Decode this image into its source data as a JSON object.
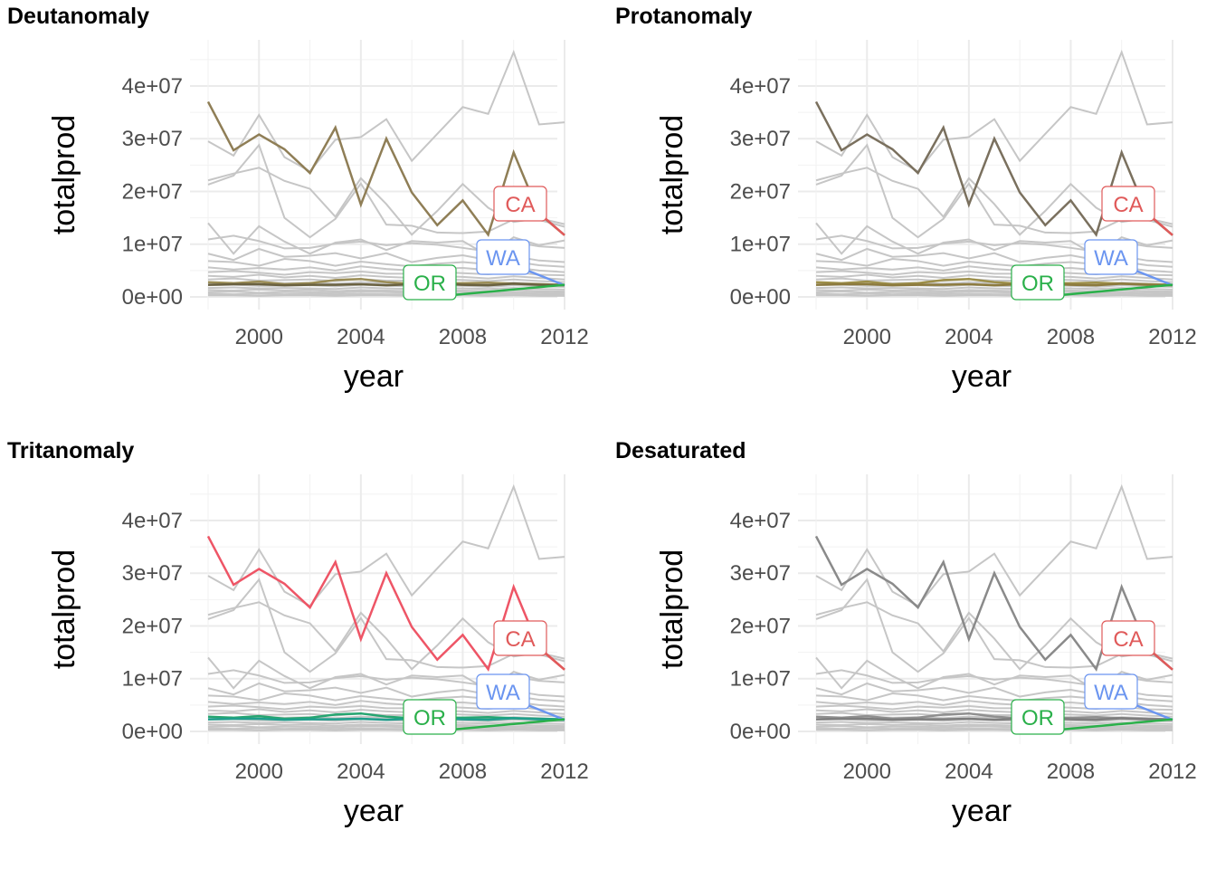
{
  "chart_data": [
    {
      "type": "line",
      "title": "Deutanomaly",
      "xlabel": "year",
      "ylabel": "totalprod",
      "xlim": [
        1998,
        2012
      ],
      "ylim": [
        0,
        46000000
      ],
      "x_ticks": [
        2000,
        2004,
        2008,
        2012
      ],
      "y_ticks": [
        0,
        10000000,
        20000000,
        30000000,
        40000000
      ],
      "y_tick_labels": [
        "0e+00",
        "1e+07",
        "2e+07",
        "3e+07",
        "4e+07"
      ],
      "grid": true,
      "x": [
        1998,
        1999,
        2000,
        2001,
        2002,
        2003,
        2004,
        2005,
        2006,
        2007,
        2008,
        2009,
        2010,
        2011,
        2012
      ],
      "series": [
        {
          "name": "CA",
          "color": "#8f7e56",
          "label_color": "#e05a5a",
          "values": [
            37000000,
            27800000,
            30800000,
            28000000,
            23500000,
            32100000,
            17500000,
            30000000,
            19800000,
            13600000,
            18300000,
            11800000,
            27400000,
            15800000,
            11700000
          ]
        },
        {
          "name": "WA",
          "color": "#6a6140",
          "label_color": "#6b95f0",
          "values": [
            2300000,
            2400000,
            2400000,
            2200000,
            2300000,
            2300000,
            2400000,
            2200000,
            2400000,
            2500000,
            2300000,
            2200000,
            2500000,
            2300000,
            2200000
          ]
        },
        {
          "name": "OR",
          "color": "#9a8c55",
          "label_color": "#2ab04a",
          "values": [
            2800000,
            2600000,
            2900000,
            2400000,
            2600000,
            3200000,
            3400000,
            2800000,
            2500000,
            2600000,
            2600000,
            2700000,
            2500000,
            2400000,
            2300000
          ]
        }
      ],
      "labels": [
        "CA",
        "WA",
        "OR"
      ]
    },
    {
      "type": "line",
      "title": "Protanomaly",
      "xlabel": "year",
      "ylabel": "totalprod",
      "xlim": [
        1998,
        2012
      ],
      "ylim": [
        0,
        46000000
      ],
      "x_ticks": [
        2000,
        2004,
        2008,
        2012
      ],
      "y_ticks": [
        0,
        10000000,
        20000000,
        30000000,
        40000000
      ],
      "y_tick_labels": [
        "0e+00",
        "1e+07",
        "2e+07",
        "3e+07",
        "4e+07"
      ],
      "grid": true,
      "x": [
        1998,
        1999,
        2000,
        2001,
        2002,
        2003,
        2004,
        2005,
        2006,
        2007,
        2008,
        2009,
        2010,
        2011,
        2012
      ],
      "series": [
        {
          "name": "CA",
          "color": "#7a705e",
          "label_color": "#e05a5a",
          "values": [
            37000000,
            27800000,
            30800000,
            28000000,
            23500000,
            32100000,
            17500000,
            30000000,
            19800000,
            13600000,
            18300000,
            11800000,
            27400000,
            15800000,
            11700000
          ]
        },
        {
          "name": "WA",
          "color": "#8c7a3e",
          "label_color": "#6b95f0",
          "values": [
            2300000,
            2400000,
            2400000,
            2200000,
            2300000,
            2300000,
            2400000,
            2200000,
            2400000,
            2500000,
            2300000,
            2200000,
            2500000,
            2300000,
            2200000
          ]
        },
        {
          "name": "OR",
          "color": "#9c8e48",
          "label_color": "#2ab04a",
          "values": [
            2800000,
            2600000,
            2900000,
            2400000,
            2600000,
            3200000,
            3400000,
            2800000,
            2500000,
            2600000,
            2600000,
            2700000,
            2500000,
            2400000,
            2300000
          ]
        }
      ],
      "labels": [
        "CA",
        "WA",
        "OR"
      ]
    },
    {
      "type": "line",
      "title": "Tritanomaly",
      "xlabel": "year",
      "ylabel": "totalprod",
      "xlim": [
        1998,
        2012
      ],
      "ylim": [
        0,
        46000000
      ],
      "x_ticks": [
        2000,
        2004,
        2008,
        2012
      ],
      "y_ticks": [
        0,
        10000000,
        20000000,
        30000000,
        40000000
      ],
      "y_tick_labels": [
        "0e+00",
        "1e+07",
        "2e+07",
        "3e+07",
        "4e+07"
      ],
      "grid": true,
      "x": [
        1998,
        1999,
        2000,
        2001,
        2002,
        2003,
        2004,
        2005,
        2006,
        2007,
        2008,
        2009,
        2010,
        2011,
        2012
      ],
      "series": [
        {
          "name": "CA",
          "color": "#ee5566",
          "label_color": "#e05a5a",
          "values": [
            37000000,
            27800000,
            30800000,
            28000000,
            23500000,
            32100000,
            17500000,
            30000000,
            19800000,
            13600000,
            18300000,
            11800000,
            27400000,
            15800000,
            11700000
          ]
        },
        {
          "name": "WA",
          "color": "#1f9e8c",
          "label_color": "#6b95f0",
          "values": [
            2300000,
            2400000,
            2400000,
            2200000,
            2300000,
            2300000,
            2400000,
            2200000,
            2400000,
            2500000,
            2300000,
            2200000,
            2500000,
            2300000,
            2200000
          ]
        },
        {
          "name": "OR",
          "color": "#25a570",
          "label_color": "#2ab04a",
          "values": [
            2800000,
            2600000,
            2900000,
            2400000,
            2600000,
            3200000,
            3400000,
            2800000,
            2500000,
            2600000,
            2600000,
            2700000,
            2500000,
            2400000,
            2300000
          ]
        }
      ],
      "labels": [
        "CA",
        "WA",
        "OR"
      ]
    },
    {
      "type": "line",
      "title": "Desaturated",
      "xlabel": "year",
      "ylabel": "totalprod",
      "xlim": [
        1998,
        2012
      ],
      "ylim": [
        0,
        46000000
      ],
      "x_ticks": [
        2000,
        2004,
        2008,
        2012
      ],
      "y_ticks": [
        0,
        10000000,
        20000000,
        30000000,
        40000000
      ],
      "y_tick_labels": [
        "0e+00",
        "1e+07",
        "2e+07",
        "3e+07",
        "4e+07"
      ],
      "grid": true,
      "x": [
        1998,
        1999,
        2000,
        2001,
        2002,
        2003,
        2004,
        2005,
        2006,
        2007,
        2008,
        2009,
        2010,
        2011,
        2012
      ],
      "series": [
        {
          "name": "CA",
          "color": "#8a8a8a",
          "label_color": "#e05a5a",
          "values": [
            37000000,
            27800000,
            30800000,
            28000000,
            23500000,
            32100000,
            17500000,
            30000000,
            19800000,
            13600000,
            18300000,
            11800000,
            27400000,
            15800000,
            11700000
          ]
        },
        {
          "name": "WA",
          "color": "#7d7d7d",
          "label_color": "#6b95f0",
          "values": [
            2300000,
            2400000,
            2400000,
            2200000,
            2300000,
            2300000,
            2400000,
            2200000,
            2400000,
            2500000,
            2300000,
            2200000,
            2500000,
            2300000,
            2200000
          ]
        },
        {
          "name": "OR",
          "color": "#8f8f8f",
          "label_color": "#2ab04a",
          "values": [
            2800000,
            2600000,
            2900000,
            2400000,
            2600000,
            3200000,
            3400000,
            2800000,
            2500000,
            2600000,
            2600000,
            2700000,
            2500000,
            2400000,
            2300000
          ]
        }
      ],
      "labels": [
        "CA",
        "WA",
        "OR"
      ]
    }
  ],
  "background_series": {
    "color": "#c6c6c6",
    "values": [
      [
        29500000,
        26800000,
        34500000,
        26500000,
        23800000,
        29800000,
        30300000,
        33700000,
        25800000,
        30900000,
        36000000,
        34700000,
        46400000,
        32700000,
        33100000
      ],
      [
        22100000,
        23400000,
        24500000,
        22000000,
        20500000,
        15200000,
        22500000,
        17600000,
        11800000,
        16300000,
        21400000,
        16900000,
        14200000,
        14900000,
        13800000
      ],
      [
        21300000,
        23000000,
        28800000,
        15000000,
        11300000,
        14800000,
        21500000,
        13700000,
        13500000,
        12200000,
        12100000,
        12400000,
        14700000,
        14600000,
        13300000
      ],
      [
        14000000,
        8200000,
        13400000,
        10500000,
        8200000,
        10300000,
        10900000,
        8900000,
        10600000,
        10300000,
        10600000,
        7800000,
        11300000,
        9800000,
        10700000
      ],
      [
        10900000,
        11600000,
        10600000,
        9200000,
        9300000,
        10100000,
        10500000,
        9800000,
        10200000,
        9900000,
        9300000,
        8600000,
        10400000,
        9600000,
        9300000
      ],
      [
        8200000,
        7000000,
        9100000,
        7600000,
        7800000,
        8300000,
        7300000,
        8300000,
        6600000,
        7400000,
        7900000,
        7000000,
        7700000,
        6900000,
        6600000
      ],
      [
        6800000,
        6600000,
        5900000,
        7200000,
        6800000,
        5900000,
        6700000,
        6200000,
        5800000,
        6300000,
        6600000,
        6200000,
        6700000,
        6000000,
        5700000
      ],
      [
        5600000,
        5200000,
        5500000,
        5200000,
        5600000,
        5000000,
        5800000,
        5300000,
        5000000,
        5300000,
        5500000,
        5100000,
        5600000,
        5000000,
        4700000
      ],
      [
        4700000,
        4900000,
        4600000,
        4200000,
        4700000,
        4500000,
        4800000,
        4400000,
        4400000,
        4700000,
        4500000,
        4300000,
        4700000,
        4200000,
        4100000
      ],
      [
        4000000,
        3800000,
        4200000,
        3700000,
        4000000,
        3600000,
        4100000,
        3800000,
        3600000,
        3900000,
        3800000,
        3500000,
        3900000,
        3600000,
        3300000
      ],
      [
        3300000,
        3500000,
        3100000,
        3200000,
        3300000,
        3000000,
        3400000,
        3100000,
        3100000,
        3300000,
        3200000,
        3000000,
        3300000,
        3000000,
        2800000
      ],
      [
        2700000,
        2500000,
        2800000,
        2600000,
        2700000,
        2500000,
        2800000,
        2600000,
        2500000,
        2700000,
        2600000,
        2400000,
        2700000,
        2500000,
        2300000
      ],
      [
        2200000,
        2300000,
        2100000,
        2100000,
        2200000,
        2000000,
        2300000,
        2100000,
        2000000,
        2200000,
        2100000,
        1900000,
        2200000,
        2000000,
        1900000
      ],
      [
        1700000,
        1800000,
        1600000,
        1700000,
        1600000,
        1500000,
        1800000,
        1600000,
        1500000,
        1700000,
        1600000,
        1500000,
        1700000,
        1500000,
        1400000
      ],
      [
        1300000,
        1200000,
        1400000,
        1200000,
        1300000,
        1100000,
        1300000,
        1200000,
        1100000,
        1300000,
        1200000,
        1100000,
        1300000,
        1100000,
        1000000
      ],
      [
        900000,
        1000000,
        800000,
        900000,
        900000,
        800000,
        1000000,
        900000,
        800000,
        900000,
        900000,
        800000,
        900000,
        800000,
        700000
      ],
      [
        600000,
        500000,
        600000,
        500000,
        600000,
        500000,
        600000,
        500000,
        500000,
        600000,
        500000,
        500000,
        600000,
        500000,
        400000
      ],
      [
        300000,
        300000,
        200000,
        300000,
        300000,
        200000,
        300000,
        300000,
        200000,
        300000,
        300000,
        200000,
        300000,
        200000,
        200000
      ]
    ]
  },
  "colors": {
    "grid_major": "#ebebeb",
    "grid_minor": "#f2f2f2",
    "label_background": "#ffffff"
  }
}
